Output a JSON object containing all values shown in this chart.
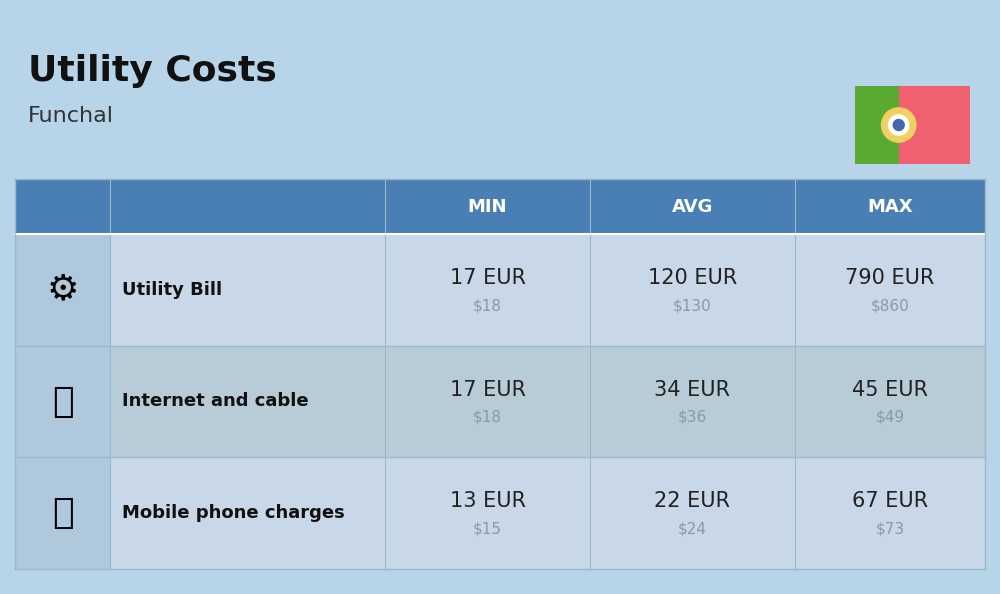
{
  "title": "Utility Costs",
  "subtitle": "Funchal",
  "background_color": "#b8d4e8",
  "header_bg_color": "#4a7fb5",
  "header_text_color": "#ffffff",
  "row_bg_color_odd": "#c8d8e8",
  "row_bg_color_even": "#b8ccd8",
  "icon_col_bg": "#b0c8dc",
  "table_border_color": "#8aabcc",
  "rows": [
    {
      "label": "Utility Bill",
      "min_eur": "17 EUR",
      "min_usd": "$18",
      "avg_eur": "120 EUR",
      "avg_usd": "$130",
      "max_eur": "790 EUR",
      "max_usd": "$860"
    },
    {
      "label": "Internet and cable",
      "min_eur": "17 EUR",
      "min_usd": "$18",
      "avg_eur": "34 EUR",
      "avg_usd": "$36",
      "max_eur": "45 EUR",
      "max_usd": "$49"
    },
    {
      "label": "Mobile phone charges",
      "min_eur": "13 EUR",
      "min_usd": "$15",
      "avg_eur": "22 EUR",
      "avg_usd": "$24",
      "max_eur": "67 EUR",
      "max_usd": "$73"
    }
  ],
  "flag_green": "#5aaa32",
  "flag_red": "#f06070",
  "flag_yellow": "#f0d060",
  "title_fontsize": 26,
  "subtitle_fontsize": 16,
  "header_fontsize": 13,
  "label_fontsize": 13,
  "value_fontsize": 15,
  "usd_fontsize": 11,
  "usd_color": "#8899aa",
  "label_color": "#111111",
  "value_color": "#222222"
}
